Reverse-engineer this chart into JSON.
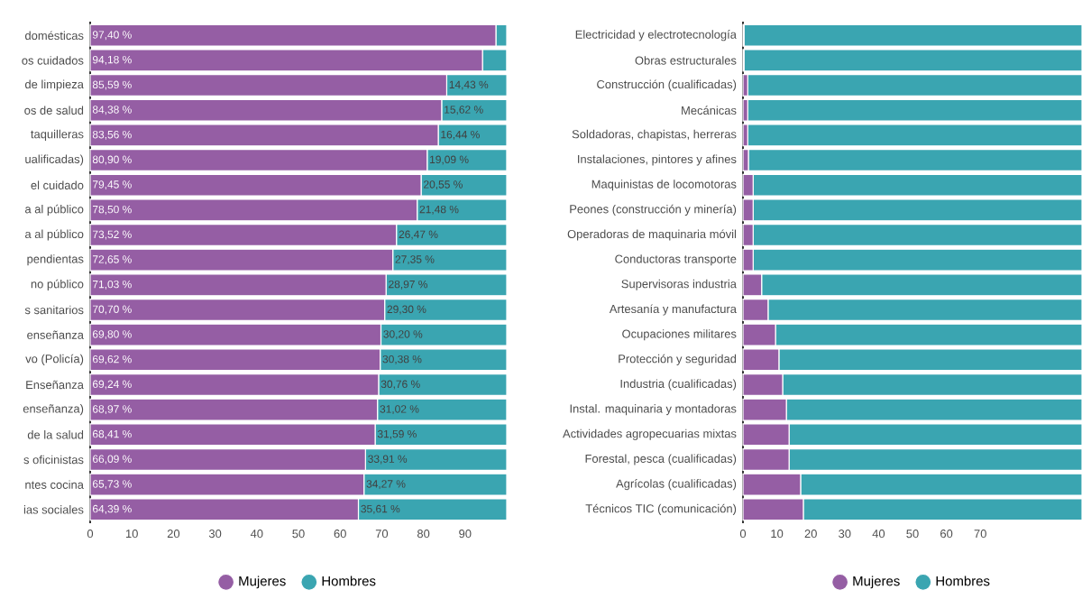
{
  "chart_data": [
    {
      "type": "bar",
      "orientation": "horizontal",
      "stacked": true,
      "legend": "bottom",
      "categories": [
        "domésticas",
        "os cuidados",
        "de limpieza",
        "os de salud",
        "taquilleras",
        "ualificadas)",
        "el cuidado",
        "a al público",
        "a al público",
        "pendientas",
        "no público",
        "s sanitarios",
        "enseñanza",
        "vo (Policía)",
        "Enseñanza",
        "enseñanza)",
        "de la salud",
        "s oficinistas",
        "ntes cocina",
        "ias sociales"
      ],
      "series": [
        {
          "name": "Mujeres",
          "color": "#955ea4",
          "values": [
            97.4,
            94.18,
            85.59,
            84.38,
            83.56,
            80.9,
            79.45,
            78.5,
            73.52,
            72.65,
            71.03,
            70.7,
            69.8,
            69.62,
            69.24,
            68.97,
            68.41,
            66.09,
            65.73,
            64.39
          ],
          "value_labels": [
            "97,40 %",
            "94,18 %",
            "85,59 %",
            "84,38 %",
            "83,56 %",
            "80,90 %",
            "79,45 %",
            "78,50 %",
            "73,52 %",
            "72,65 %",
            "71,03 %",
            "70,70 %",
            "69,80 %",
            "69,62 %",
            "69,24 %",
            "68,97 %",
            "68,41 %",
            "66,09 %",
            "65,73 %",
            "64,39 %"
          ]
        },
        {
          "name": "Hombres",
          "color": "#3aa5b1",
          "values": [
            2.6,
            5.8,
            14.43,
            15.62,
            16.44,
            19.09,
            20.55,
            21.48,
            26.47,
            27.35,
            28.97,
            29.3,
            30.2,
            30.38,
            30.76,
            31.02,
            31.59,
            33.91,
            34.27,
            35.61
          ],
          "value_labels": [
            null,
            null,
            "14,43 %",
            "15,62 %",
            "16,44 %",
            "19,09 %",
            "20,55 %",
            "21,48 %",
            "26,47 %",
            "27,35 %",
            "28,97 %",
            "29,30 %",
            "30,20 %",
            "30,38 %",
            "30,76 %",
            "31,02 %",
            "31,59 %",
            "33,91 %",
            "34,27 %",
            "35,61 %"
          ]
        }
      ],
      "xlim": [
        0,
        100
      ],
      "xticks": [
        0,
        10,
        20,
        30,
        40,
        50,
        60,
        70,
        80,
        90
      ]
    },
    {
      "type": "bar",
      "orientation": "horizontal",
      "stacked": true,
      "legend": "bottom",
      "categories": [
        "Electricidad y electrotecnología",
        "Obras estructurales",
        "Construcción (cualificadas)",
        "Mecánicas",
        "Soldadoras, chapistas, herreras",
        "Instalaciones, pintores y afines",
        "Maquinistas de locomotoras",
        "Peones (construcción y minería)",
        "Operadoras de maquinaria móvil",
        "Conductoras transporte",
        "Supervisoras industria",
        "Artesanía y manufactura",
        "Ocupaciones militares",
        "Protección y seguridad",
        "Industria (cualificadas)",
        "Instal. maquinaria y montadoras",
        "Actividades agropecuarias mixtas",
        "Forestal, pesca (cualificadas)",
        "Agrícolas (cualificadas)",
        "Técnicos TIC (comunicación)"
      ],
      "series": [
        {
          "name": "Mujeres",
          "color": "#955ea4",
          "values": [
            0.3,
            0.3,
            1.4,
            1.4,
            1.4,
            1.6,
            3.0,
            3.0,
            3.0,
            3.0,
            5.5,
            7.4,
            9.6,
            10.6,
            11.7,
            12.8,
            13.6,
            13.6,
            17.0,
            17.8
          ]
        },
        {
          "name": "Hombres",
          "color": "#3aa5b1",
          "values": [
            99.7,
            99.7,
            98.6,
            98.6,
            98.6,
            98.4,
            97.0,
            97.0,
            97.0,
            97.0,
            94.5,
            92.6,
            90.4,
            89.4,
            88.3,
            87.2,
            86.4,
            86.4,
            83.0,
            82.2
          ]
        }
      ],
      "xlim": [
        0,
        100
      ],
      "xticks": [
        0,
        10,
        20,
        30,
        40,
        50,
        60,
        70
      ]
    }
  ]
}
